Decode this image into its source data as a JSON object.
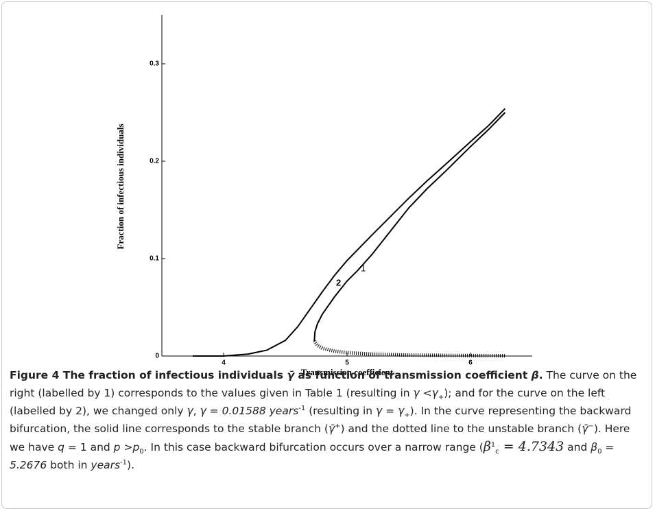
{
  "chart_data": {
    "type": "line",
    "xlabel": "Transmission coefficient",
    "ylabel": "Fraction of infectious individuals",
    "xlim": [
      3.5,
      6.5
    ],
    "ylim": [
      0,
      0.35
    ],
    "xticks": [
      4,
      5,
      6
    ],
    "yticks": [
      0,
      0.1,
      0.2,
      0.3
    ],
    "series": [
      {
        "name": "1",
        "color": "#000000",
        "style": "solid",
        "x": [
          4.735,
          4.74,
          4.76,
          4.8,
          4.9,
          5.0,
          5.08,
          5.2,
          5.35,
          5.5,
          5.65,
          5.8,
          6.0,
          6.15,
          6.28
        ],
        "values": [
          0.0155,
          0.025,
          0.033,
          0.043,
          0.061,
          0.077,
          0.087,
          0.104,
          0.128,
          0.152,
          0.172,
          0.19,
          0.215,
          0.233,
          0.25
        ]
      },
      {
        "name": "2",
        "color": "#000000",
        "style": "solid",
        "x": [
          3.75,
          4.0,
          4.2,
          4.35,
          4.5,
          4.6,
          4.7,
          4.8,
          4.9,
          5.0,
          5.2,
          5.35,
          5.5,
          5.65,
          5.8,
          6.0,
          6.15,
          6.28
        ],
        "values": [
          0,
          0,
          0.002,
          0.006,
          0.016,
          0.03,
          0.048,
          0.066,
          0.083,
          0.098,
          0.124,
          0.143,
          0.162,
          0.18,
          0.197,
          0.22,
          0.237,
          0.254
        ]
      },
      {
        "color": "#000000",
        "style": "dotted",
        "x": [
          4.735,
          4.76,
          4.8,
          4.9,
          5.0,
          5.2,
          5.5,
          5.8,
          6.0,
          6.28
        ],
        "values": [
          0.0155,
          0.011,
          0.008,
          0.005,
          0.0035,
          0.002,
          0.001,
          0.0007,
          0.0005,
          0.0003
        ]
      }
    ]
  },
  "caption": {
    "segments": [
      {
        "text": "Figure 4 The fraction of infectious individuals ",
        "style": "b"
      },
      {
        "text": "γ̄",
        "style": "bi"
      },
      {
        "text": " as function of transmission coefficient ",
        "style": "b"
      },
      {
        "text": "β",
        "style": "bi"
      },
      {
        "text": ".",
        "style": "b"
      },
      {
        "text": " The curve on the right (labelled by 1) corresponds to the values given in Table 1 (resulting in ",
        "style": "n"
      },
      {
        "text": "γ",
        "style": "i"
      },
      {
        "text": " <",
        "style": "n"
      },
      {
        "text": "γ",
        "style": "i"
      },
      {
        "text": "+",
        "style": "sub"
      },
      {
        "text": "); and for the curve on the left (labelled by 2), we changed only ",
        "style": "n"
      },
      {
        "text": "γ",
        "style": "i"
      },
      {
        "text": ", ",
        "style": "n"
      },
      {
        "text": "γ",
        "style": "i"
      },
      {
        "text": " = ",
        "style": "n"
      },
      {
        "text": "0.01588 years",
        "style": "i"
      },
      {
        "text": "-1",
        "style": "sup"
      },
      {
        "text": " (resulting in ",
        "style": "n"
      },
      {
        "text": "γ",
        "style": "i"
      },
      {
        "text": " = ",
        "style": "n"
      },
      {
        "text": "γ",
        "style": "i"
      },
      {
        "text": "+",
        "style": "sub"
      },
      {
        "text": "). In the curve representing the backward bifurcation, the solid line corresponds to the stable branch (",
        "style": "n"
      },
      {
        "text": "γ̄",
        "style": "i"
      },
      {
        "text": "+",
        "style": "sup"
      },
      {
        "text": ") and the dotted line to the unstable branch (",
        "style": "n"
      },
      {
        "text": "γ̄",
        "style": "i"
      },
      {
        "text": "−",
        "style": "sup"
      },
      {
        "text": "). Here we have ",
        "style": "n"
      },
      {
        "text": "q",
        "style": "i"
      },
      {
        "text": " = 1 and ",
        "style": "n"
      },
      {
        "text": "p",
        "style": "i"
      },
      {
        "text": " >",
        "style": "n"
      },
      {
        "text": "p",
        "style": "i"
      },
      {
        "text": "0",
        "style": "sub"
      },
      {
        "text": ". In this case backward bifurcation occurs over a narrow range (",
        "style": "n"
      },
      {
        "text": "β",
        "style": "big"
      },
      {
        "text": "1",
        "style": "sup"
      },
      {
        "text": "c",
        "style": "sub"
      },
      {
        "text": " = 4.7343",
        "style": "big"
      },
      {
        "text": " and ",
        "style": "n"
      },
      {
        "text": "β",
        "style": "i"
      },
      {
        "text": "0",
        "style": "sub"
      },
      {
        "text": " = 5.2676",
        "style": "i"
      },
      {
        "text": " both in ",
        "style": "n"
      },
      {
        "text": "years",
        "style": "i"
      },
      {
        "text": "-1",
        "style": "sup"
      },
      {
        "text": ").",
        "style": "n"
      }
    ]
  }
}
